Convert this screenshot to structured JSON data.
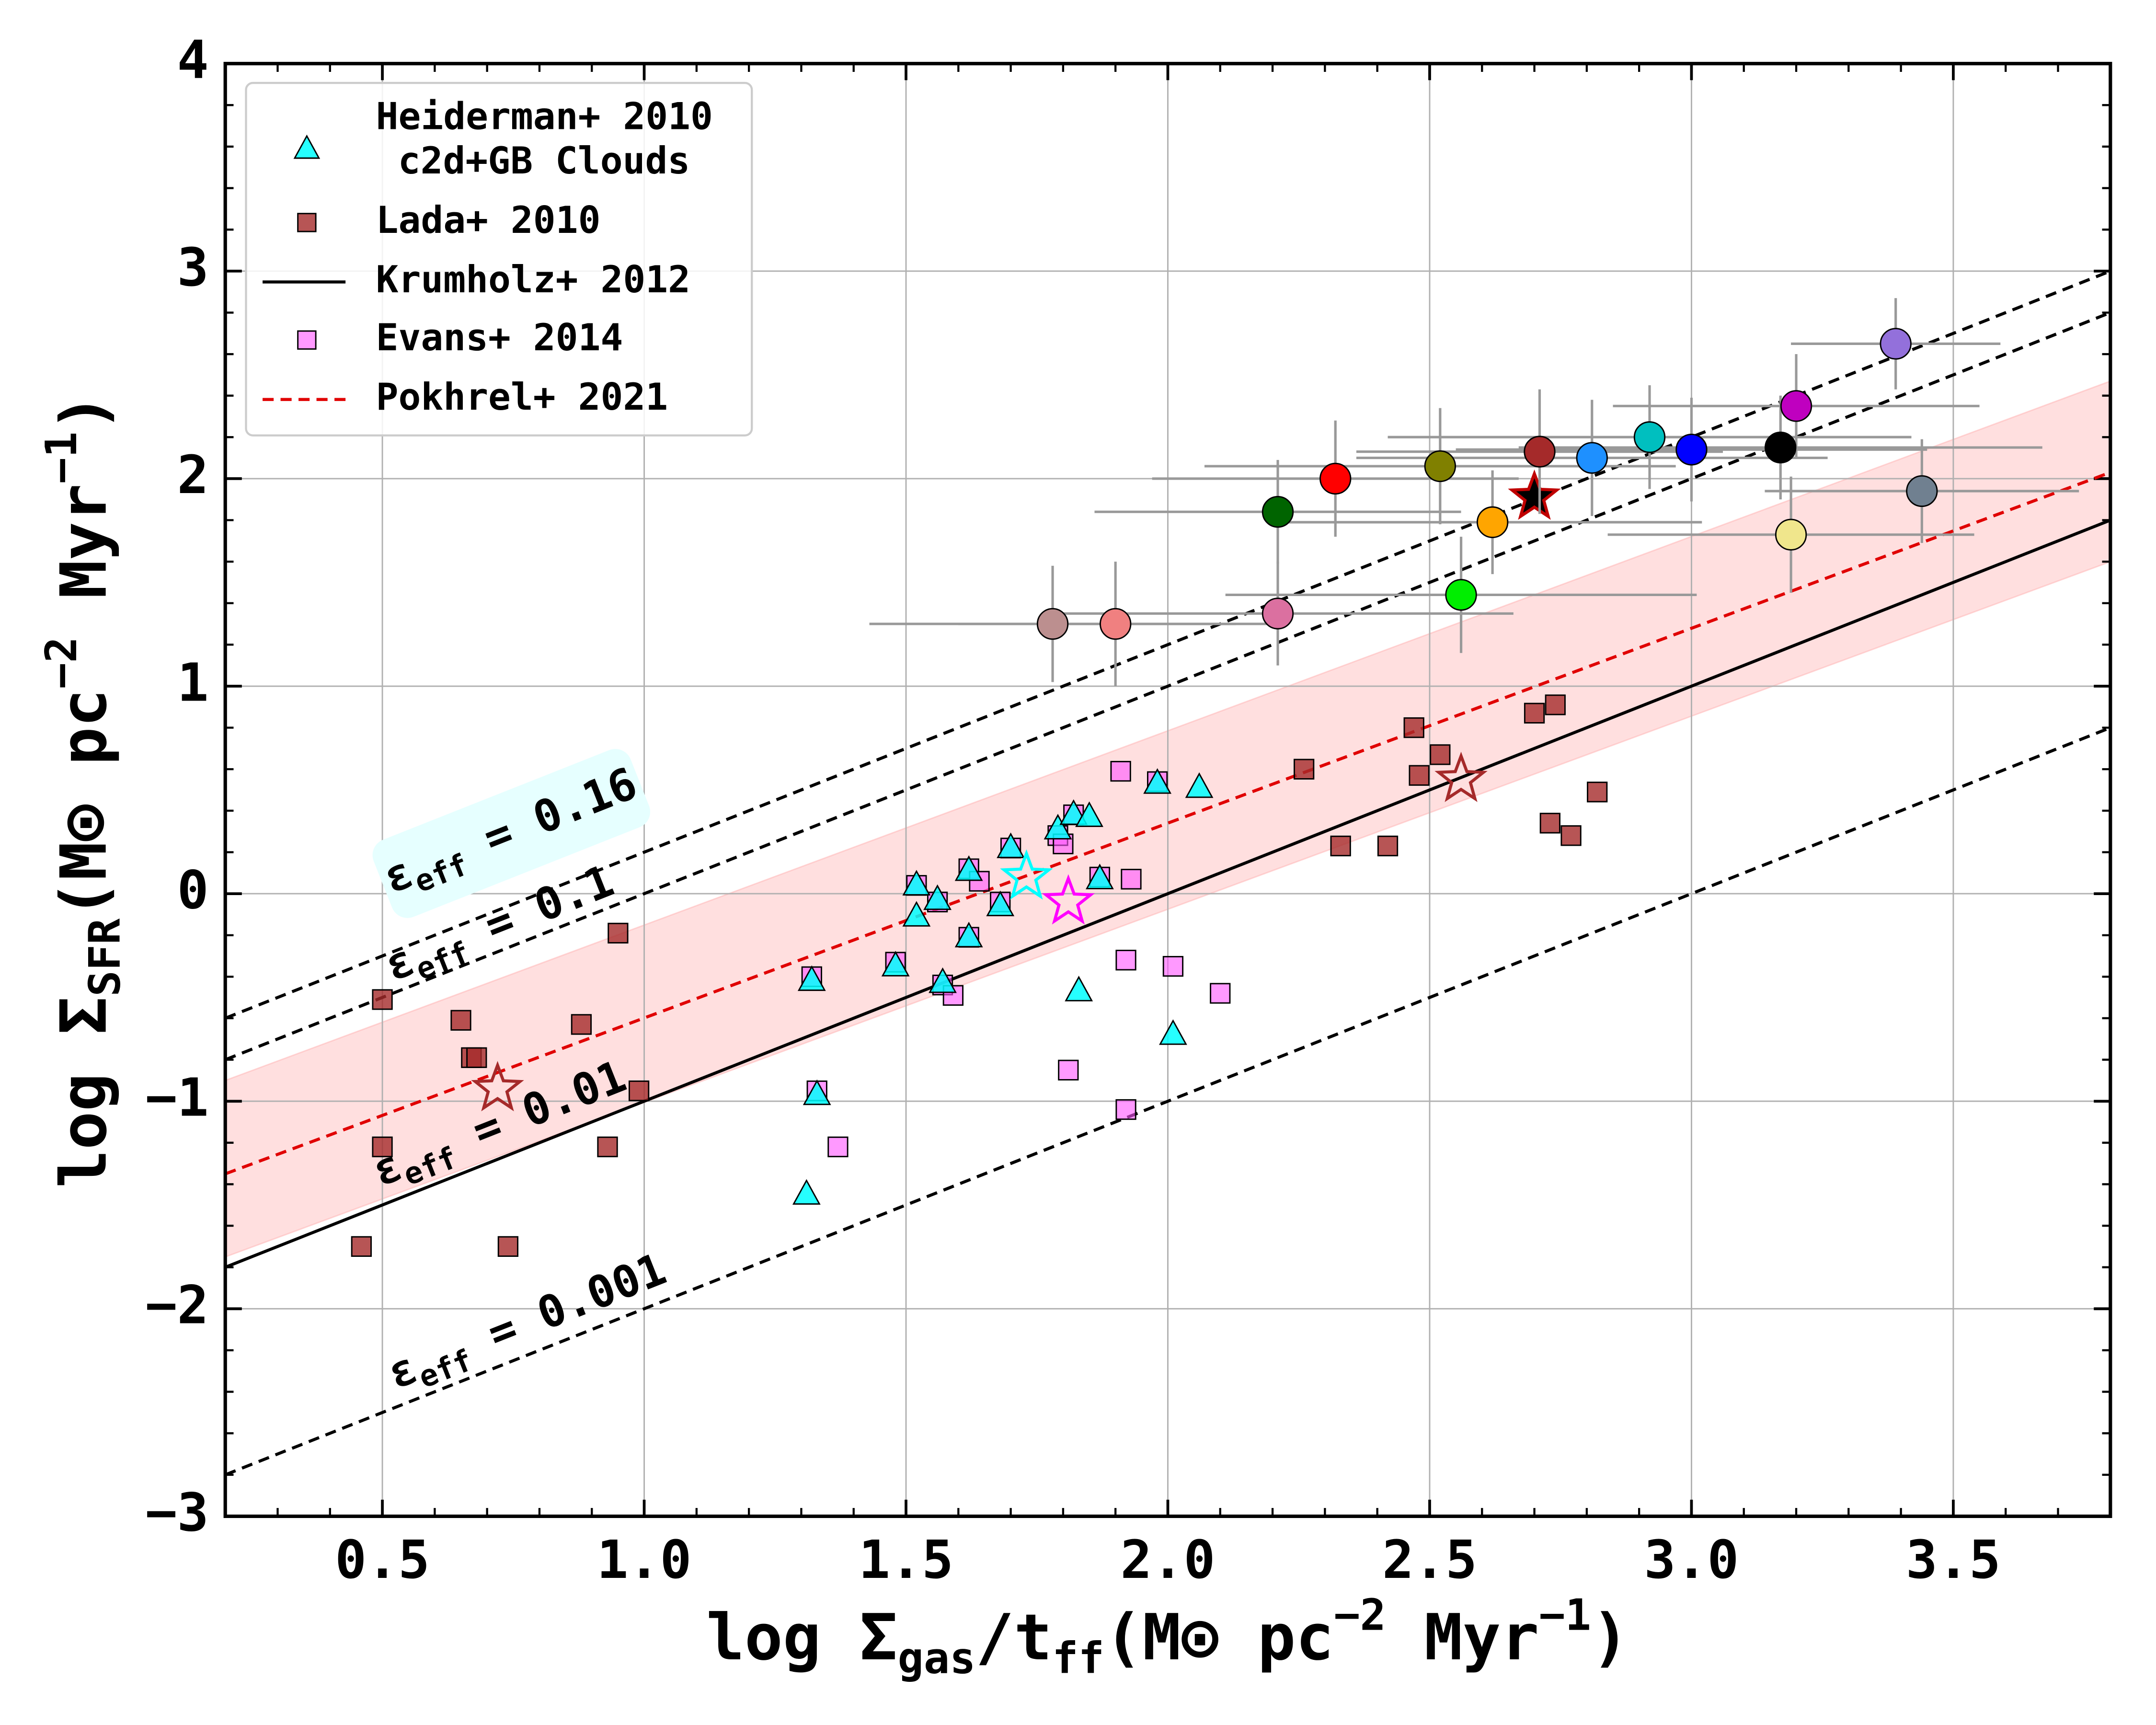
{
  "chart_data": {
    "type": "scatter",
    "xlabel": [
      {
        "text": "log Σ"
      },
      {
        "text": "gas",
        "sub": true
      },
      {
        "text": "/t"
      },
      {
        "text": "ff",
        "sub": true
      },
      {
        "text": "(M⊙ pc"
      },
      {
        "text": "−2",
        "sup": true
      },
      {
        "text": " Myr"
      },
      {
        "text": "−1",
        "sup": true
      },
      {
        "text": ")"
      }
    ],
    "ylabel": [
      {
        "text": "log Σ"
      },
      {
        "text": "SFR",
        "sub": true
      },
      {
        "text": "(M⊙ pc"
      },
      {
        "text": "−2",
        "sup": true
      },
      {
        "text": " Myr"
      },
      {
        "text": "−1",
        "sup": true
      },
      {
        "text": ")"
      }
    ],
    "xlim": [
      0.2,
      3.8
    ],
    "ylim": [
      -3,
      4
    ],
    "xticks": [
      {
        "value": 0.5,
        "label": "0.5"
      },
      {
        "value": 1.0,
        "label": "1.0"
      },
      {
        "value": 1.5,
        "label": "1.5"
      },
      {
        "value": 2.0,
        "label": "2.0"
      },
      {
        "value": 2.5,
        "label": "2.5"
      },
      {
        "value": 3.0,
        "label": "3.0"
      },
      {
        "value": 3.5,
        "label": "3.5"
      }
    ],
    "yticks": [
      {
        "value": -3,
        "label": "−3"
      },
      {
        "value": -2,
        "label": "−2"
      },
      {
        "value": -1,
        "label": "−1"
      },
      0,
      1,
      2,
      3,
      4
    ],
    "xminor": 0.1,
    "yminor": 0.2,
    "grid": true,
    "legend": "upper left",
    "band": {
      "color": "#ffb0b0",
      "x": [
        0.2,
        3.8
      ],
      "upper": [
        -0.9,
        2.47
      ],
      "lower": [
        -1.75,
        1.6
      ]
    },
    "lines": [
      {
        "name": "Krumholz+ 2012",
        "color": "#000000",
        "dash": false,
        "x": [
          0.2,
          3.8
        ],
        "y": [
          -1.8,
          1.8
        ]
      },
      {
        "name": "Pokhrel+ 2021",
        "color": "#e00000",
        "dash": true,
        "x": [
          0.2,
          3.8
        ],
        "y": [
          -1.35,
          2.03
        ]
      },
      {
        "color": "#000000",
        "dash": true,
        "x": [
          0.2,
          3.8
        ],
        "y": [
          -0.6,
          3.0
        ]
      },
      {
        "color": "#000000",
        "dash": true,
        "x": [
          0.2,
          3.8
        ],
        "y": [
          -0.8,
          2.8
        ]
      },
      {
        "color": "#000000",
        "dash": true,
        "x": [
          0.2,
          3.8
        ],
        "y": [
          -2.8,
          0.8
        ]
      }
    ],
    "annotations": [
      {
        "parts": [
          {
            "text": "ε"
          },
          {
            "text": "eff",
            "sub": true
          },
          {
            "text": " = 0.16"
          }
        ],
        "box": "#e6ffff"
      },
      {
        "parts": [
          {
            "text": "ε"
          },
          {
            "text": "eff",
            "sub": true
          },
          {
            "text": " = 0.1"
          }
        ]
      },
      {
        "parts": [
          {
            "text": "ε"
          },
          {
            "text": "eff",
            "sub": true
          },
          {
            "text": " = 0.01"
          }
        ]
      },
      {
        "parts": [
          {
            "text": "ε"
          },
          {
            "text": "eff",
            "sub": true
          },
          {
            "text": " = 0.001"
          }
        ]
      }
    ],
    "series": [
      {
        "name": [
          "Lada+ 2010"
        ],
        "marker": "square",
        "color": "#a52a2a",
        "x": [
          0.46,
          0.5,
          0.5,
          0.65,
          0.67,
          0.68,
          0.74,
          0.88,
          0.93,
          0.95,
          0.99,
          2.26,
          2.33,
          2.42,
          2.47,
          2.48,
          2.52,
          2.7,
          2.73,
          2.74,
          2.77,
          2.82
        ],
        "values": [
          -1.7,
          -0.51,
          -1.22,
          -0.61,
          -0.79,
          -0.79,
          -1.7,
          -0.63,
          -1.22,
          -0.19,
          -0.95,
          0.6,
          0.23,
          0.23,
          0.8,
          0.57,
          0.67,
          0.87,
          0.34,
          0.91,
          0.28,
          0.49
        ]
      },
      {
        "name": [
          "Evans+ 2014"
        ],
        "marker": "square",
        "color": "#ff55ff",
        "x": [
          1.32,
          1.33,
          1.37,
          1.48,
          1.52,
          1.56,
          1.57,
          1.59,
          1.62,
          1.62,
          1.64,
          1.68,
          1.7,
          1.79,
          1.8,
          1.81,
          1.82,
          1.87,
          1.91,
          1.92,
          1.93,
          1.92,
          1.98,
          2.01,
          2.1
        ],
        "values": [
          -0.4,
          -0.95,
          -1.22,
          -0.33,
          0.04,
          -0.04,
          -0.44,
          -0.49,
          0.12,
          -0.21,
          0.06,
          -0.04,
          0.22,
          0.28,
          0.24,
          -0.85,
          0.38,
          0.08,
          0.59,
          -0.32,
          0.07,
          -1.04,
          0.54,
          -0.35,
          -0.48
        ]
      },
      {
        "name": [
          "Heiderman+ 2010",
          "c2d+GB Clouds"
        ],
        "marker": "triangle",
        "color": "#00ffff",
        "x": [
          1.31,
          1.32,
          1.33,
          1.48,
          1.52,
          1.52,
          1.56,
          1.57,
          1.62,
          1.62,
          1.68,
          1.7,
          1.79,
          1.82,
          1.83,
          1.85,
          1.87,
          1.98,
          2.01,
          2.06
        ],
        "values": [
          -1.45,
          -0.42,
          -0.97,
          -0.35,
          -0.11,
          0.04,
          -0.03,
          -0.43,
          0.11,
          -0.21,
          -0.06,
          0.22,
          0.31,
          0.38,
          -0.47,
          0.37,
          0.07,
          0.53,
          -0.68,
          0.51
        ]
      }
    ],
    "stars": [
      {
        "color": "#00ffff",
        "open": true,
        "x": 1.73,
        "y": 0.08
      },
      {
        "color": "#ff00ff",
        "open": true,
        "x": 1.81,
        "y": -0.04
      },
      {
        "color": "#a52a2a",
        "open": true,
        "x": 0.72,
        "y": -0.94
      },
      {
        "color": "#a52a2a",
        "open": true,
        "x": 2.56,
        "y": 0.55
      },
      {
        "color": "#000000",
        "edge": "#c00000",
        "open": false,
        "x": 2.7,
        "y": 1.91
      }
    ],
    "circles": [
      {
        "color": "#bc8f8f",
        "x": 1.78,
        "y": 1.3,
        "xerr": 0.35,
        "yerr": 0.28
      },
      {
        "color": "#f08080",
        "x": 1.9,
        "y": 1.3,
        "xerr": 0.3,
        "yerr": 0.3
      },
      {
        "color": "#db70a0",
        "x": 2.21,
        "y": 1.35,
        "xerr": 0.45,
        "yerr": 0.25
      },
      {
        "color": "#006400",
        "x": 2.21,
        "y": 1.84,
        "xerr": 0.35,
        "yerr": 0.25
      },
      {
        "color": "#ff0000",
        "x": 2.32,
        "y": 2.0,
        "xerr": 0.35,
        "yerr": 0.28
      },
      {
        "color": "#808000",
        "x": 2.52,
        "y": 2.06,
        "xerr": 0.45,
        "yerr": 0.28
      },
      {
        "color": "#ffa500",
        "x": 2.62,
        "y": 1.79,
        "xerr": 0.4,
        "yerr": 0.25
      },
      {
        "color": "#a52a2a",
        "x": 2.71,
        "y": 2.13,
        "xerr": 0.35,
        "yerr": 0.3
      },
      {
        "color": "#00ee00",
        "x": 2.56,
        "y": 1.44,
        "xerr": 0.45,
        "yerr": 0.28
      },
      {
        "color": "#1e90ff",
        "x": 2.81,
        "y": 2.1,
        "xerr": 0.45,
        "yerr": 0.28
      },
      {
        "color": "#00bfbf",
        "x": 2.92,
        "y": 2.2,
        "xerr": 0.5,
        "yerr": 0.25
      },
      {
        "color": "#0000ff",
        "x": 3.0,
        "y": 2.14,
        "xerr": 0.45,
        "yerr": 0.25
      },
      {
        "color": "#000000",
        "x": 3.17,
        "y": 2.15,
        "xerr": 0.5,
        "yerr": 0.25
      },
      {
        "color": "#f0e68c",
        "x": 3.19,
        "y": 1.73,
        "xerr": 0.35,
        "yerr": 0.28
      },
      {
        "color": "#bf00bf",
        "x": 3.2,
        "y": 2.35,
        "xerr": 0.35,
        "yerr": 0.25
      },
      {
        "color": "#9370db",
        "x": 3.39,
        "y": 2.65,
        "xerr": 0.2,
        "yerr": 0.22
      },
      {
        "color": "#708090",
        "x": 3.44,
        "y": 1.94,
        "xerr": 0.3,
        "yerr": 0.25
      }
    ]
  }
}
